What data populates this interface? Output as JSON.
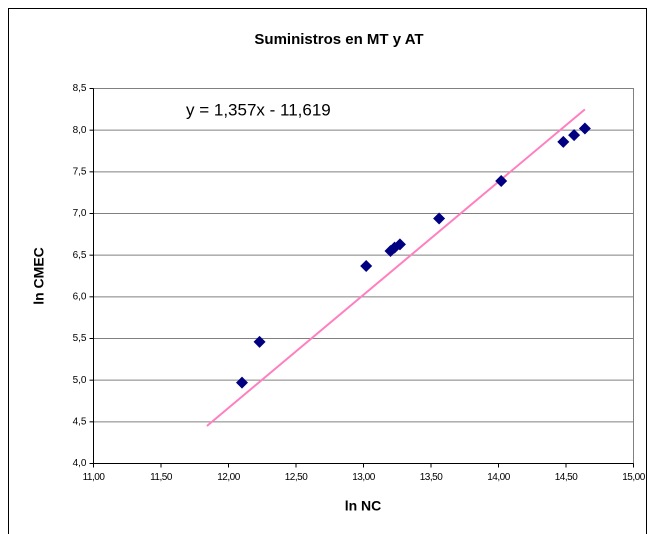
{
  "chart_data": {
    "type": "scatter",
    "title": "Suministros en MT y AT",
    "xlabel": "ln NC",
    "ylabel": "ln CMEC",
    "annotation": "y = 1,357x - 11,619",
    "series": [
      {
        "color": "#000080",
        "x": [
          12.1,
          12.23,
          13.02,
          13.2,
          13.23,
          13.27,
          13.56,
          14.02,
          14.48,
          14.56,
          14.64
        ],
        "values": [
          4.97,
          5.46,
          6.37,
          6.55,
          6.59,
          6.63,
          6.94,
          7.39,
          7.86,
          7.94,
          8.02
        ]
      }
    ],
    "trendline": {
      "color": "#ff80c0",
      "x": [
        11.84,
        14.64
      ],
      "values": [
        4.45,
        8.25
      ]
    },
    "xlim": [
      11,
      15
    ],
    "xticks": [
      {
        "value": 11,
        "label": "11,00"
      },
      {
        "value": 11.5,
        "label": "11,50"
      },
      {
        "value": 12,
        "label": "12,00"
      },
      {
        "value": 12.5,
        "label": "12,50"
      },
      {
        "value": 13,
        "label": "13,00"
      },
      {
        "value": 13.5,
        "label": "13,50"
      },
      {
        "value": 14,
        "label": "14,00"
      },
      {
        "value": 14.5,
        "label": "14,50"
      },
      {
        "value": 15,
        "label": "15,00"
      }
    ],
    "ylim": [
      4,
      8.5
    ],
    "yticks": [
      {
        "value": 4,
        "label": "4,0"
      },
      {
        "value": 4.5,
        "label": "4,5"
      },
      {
        "value": 5,
        "label": "5,0"
      },
      {
        "value": 5.5,
        "label": "5,5"
      },
      {
        "value": 6,
        "label": "6,0"
      },
      {
        "value": 6.5,
        "label": "6,5"
      },
      {
        "value": 7,
        "label": "7,0"
      },
      {
        "value": 7.5,
        "label": "7,5"
      },
      {
        "value": 8,
        "label": "8,0"
      },
      {
        "value": 8.5,
        "label": "8,5"
      }
    ],
    "grid": true
  }
}
